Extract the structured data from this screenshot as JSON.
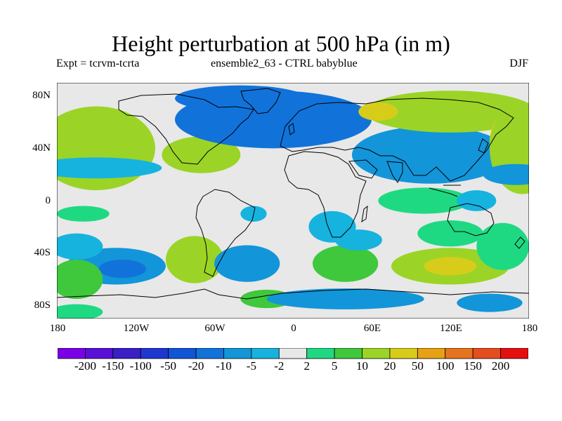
{
  "header": {
    "title": "Height perturbation at 500 hPa (in m)",
    "experiment": "Expt = tcrvm-tcrta",
    "ensemble": "ensemble2_63 - CTRL babyblue",
    "season": "DJF"
  },
  "axes": {
    "y_ticks": [
      "80N",
      "40N",
      "0",
      "40S",
      "80S"
    ],
    "x_ticks": [
      "180",
      "120W",
      "60W",
      "0",
      "60E",
      "120E",
      "180"
    ]
  },
  "chart_data": {
    "type": "heatmap",
    "title": "Height perturbation at 500 hPa (in m)",
    "variable": "500 hPa geopotential height perturbation",
    "units": "m",
    "lon_range": [
      -180,
      180
    ],
    "lat_range": [
      -90,
      90
    ],
    "contour_levels": [
      -200,
      -150,
      -100,
      -50,
      -20,
      -10,
      -5,
      -2,
      2,
      5,
      10,
      20,
      50,
      100,
      150,
      200
    ],
    "colors": [
      "#7a00e6",
      "#5a0fd6",
      "#3a1fc7",
      "#1f37d1",
      "#0f55d6",
      "#1173d9",
      "#1395d9",
      "#16b3df",
      "#e8e8e8",
      "#1fd982",
      "#3fc83c",
      "#9bd426",
      "#d8cc1a",
      "#e6a114",
      "#e6741e",
      "#e64d1e",
      "#e60f0f"
    ],
    "features": [
      {
        "lon": -150,
        "lat": 50,
        "rx": 28,
        "ry": 20,
        "value": 45
      },
      {
        "lon": -150,
        "lat": 40,
        "rx": 45,
        "ry": 32,
        "value": 18
      },
      {
        "lon": -65,
        "lat": 37,
        "rx": 15,
        "ry": 8,
        "value": 28
      },
      {
        "lon": -70,
        "lat": 35,
        "rx": 30,
        "ry": 14,
        "value": 12
      },
      {
        "lon": -30,
        "lat": 65,
        "rx": 30,
        "ry": 12,
        "value": -35
      },
      {
        "lon": -15,
        "lat": 62,
        "rx": 75,
        "ry": 22,
        "value": -15
      },
      {
        "lon": -40,
        "lat": 78,
        "rx": 50,
        "ry": 10,
        "value": -12
      },
      {
        "lon": 110,
        "lat": 38,
        "rx": 35,
        "ry": 15,
        "value": -15
      },
      {
        "lon": 105,
        "lat": 35,
        "rx": 60,
        "ry": 22,
        "value": -8
      },
      {
        "lon": 120,
        "lat": 68,
        "rx": 65,
        "ry": 16,
        "value": 12
      },
      {
        "lon": 65,
        "lat": 68,
        "rx": 15,
        "ry": 7,
        "value": 25
      },
      {
        "lon": 170,
        "lat": 45,
        "rx": 20,
        "ry": 25,
        "value": 35
      },
      {
        "lon": 175,
        "lat": 40,
        "rx": 25,
        "ry": 35,
        "value": 18
      },
      {
        "lon": -150,
        "lat": 25,
        "rx": 50,
        "ry": 8,
        "value": -4
      },
      {
        "lon": -75,
        "lat": -48,
        "rx": 10,
        "ry": 12,
        "value": 22
      },
      {
        "lon": -75,
        "lat": -45,
        "rx": 22,
        "ry": 18,
        "value": 12
      },
      {
        "lon": -135,
        "lat": -50,
        "rx": 38,
        "ry": 14,
        "value": -8
      },
      {
        "lon": -130,
        "lat": -52,
        "rx": 18,
        "ry": 7,
        "value": -15
      },
      {
        "lon": -35,
        "lat": -48,
        "rx": 25,
        "ry": 14,
        "value": -8
      },
      {
        "lon": 45,
        "lat": -50,
        "rx": 12,
        "ry": 10,
        "value": 15
      },
      {
        "lon": 40,
        "lat": -48,
        "rx": 25,
        "ry": 14,
        "value": 6
      },
      {
        "lon": 120,
        "lat": -50,
        "rx": 45,
        "ry": 14,
        "value": 15
      },
      {
        "lon": 120,
        "lat": -50,
        "rx": 20,
        "ry": 7,
        "value": 25
      },
      {
        "lon": 120,
        "lat": -25,
        "rx": 25,
        "ry": 10,
        "value": 4
      },
      {
        "lon": 160,
        "lat": -35,
        "rx": 20,
        "ry": 18,
        "value": 4
      },
      {
        "lon": -165,
        "lat": -35,
        "rx": 20,
        "ry": 10,
        "value": -5
      },
      {
        "lon": -165,
        "lat": -60,
        "rx": 20,
        "ry": 15,
        "value": 6
      },
      {
        "lon": -20,
        "lat": -75,
        "rx": 20,
        "ry": 7,
        "value": 5
      },
      {
        "lon": 40,
        "lat": -75,
        "rx": 60,
        "ry": 8,
        "value": -6
      },
      {
        "lon": 150,
        "lat": -78,
        "rx": 25,
        "ry": 7,
        "value": -7
      },
      {
        "lon": -165,
        "lat": -85,
        "rx": 20,
        "ry": 6,
        "value": 4
      },
      {
        "lon": -30,
        "lat": -10,
        "rx": 10,
        "ry": 6,
        "value": -4
      },
      {
        "lon": 30,
        "lat": -20,
        "rx": 18,
        "ry": 12,
        "value": -4
      },
      {
        "lon": 50,
        "lat": -30,
        "rx": 18,
        "ry": 8,
        "value": -4
      },
      {
        "lon": 170,
        "lat": 20,
        "rx": 25,
        "ry": 8,
        "value": -6
      },
      {
        "lon": 100,
        "lat": 0,
        "rx": 35,
        "ry": 10,
        "value": 4
      },
      {
        "lon": 140,
        "lat": 0,
        "rx": 15,
        "ry": 8,
        "value": -4
      },
      {
        "lon": -160,
        "lat": -10,
        "rx": 20,
        "ry": 6,
        "value": 4
      }
    ]
  }
}
